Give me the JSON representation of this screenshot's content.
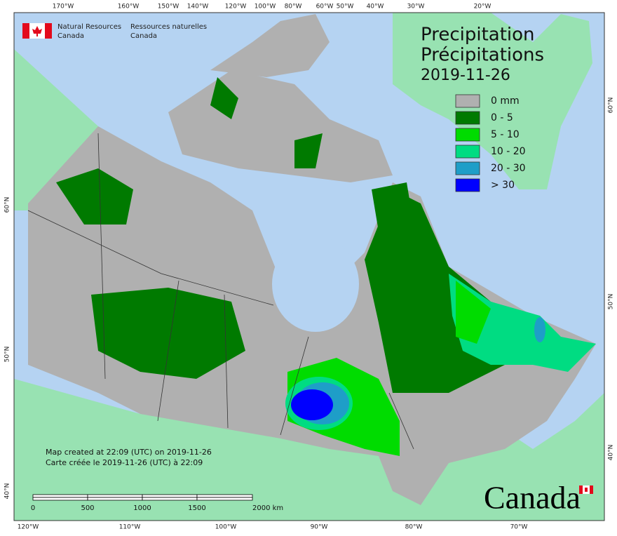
{
  "header": {
    "agency_en": "Natural Resources",
    "agency_en_2": "Canada",
    "agency_fr": "Ressources naturelles",
    "agency_fr_2": "Canada"
  },
  "title": {
    "en": "Precipitation",
    "fr": "Précipitations",
    "date": "2019-11-26"
  },
  "legend": [
    {
      "label": "0 mm",
      "color": "#b0b0b0"
    },
    {
      "label": "0 - 5",
      "color": "#007a00"
    },
    {
      "label": "5 - 10",
      "color": "#00dc00"
    },
    {
      "label": "10 - 20",
      "color": "#00dc82"
    },
    {
      "label": "20 - 30",
      "color": "#1e9ec8"
    },
    {
      "label": "> 30",
      "color": "#0000ff"
    }
  ],
  "credits": {
    "line_1": "Map created at 22:09 (UTC) on 2019-11-26",
    "line_2": "Carte créée le 2019-11-26 (UTC) à 22:09"
  },
  "scale_bar": {
    "labels": [
      "0",
      "500",
      "1000",
      "1500",
      "2000 km"
    ]
  },
  "graticule": {
    "top": [
      "170°W",
      "160°W",
      "150°W",
      "140°W",
      "120°W",
      "100°W",
      "80°W",
      "60°W",
      "50°W",
      "40°W",
      "30°W",
      "20°W"
    ],
    "bottom": [
      "120°W",
      "110°W",
      "100°W",
      "90°W",
      "80°W",
      "70°W"
    ],
    "left": [
      "60°N",
      "50°N",
      "40°N"
    ],
    "right": [
      "60°N",
      "50°N",
      "40°N"
    ]
  },
  "wordmark": "Canada"
}
